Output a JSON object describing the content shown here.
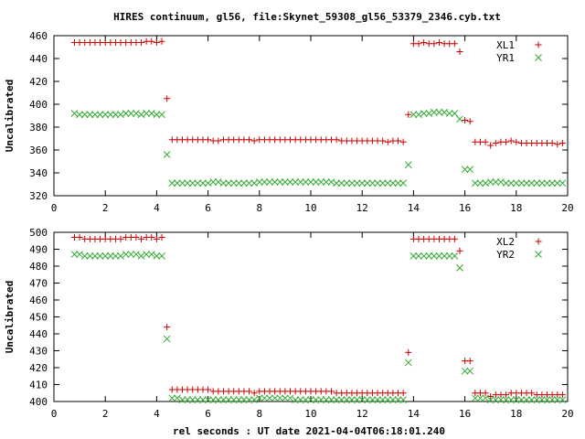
{
  "title": "HIRES continuum, gl56, file:Skynet_59308_gl56_53379_2346.cyb.txt",
  "xlabel": "rel seconds : UT date 2021-04-04T06:18:01.240",
  "colors": {
    "series_a": "#cc0000",
    "series_b": "#33aa33",
    "axis": "#000000"
  },
  "chart_data": [
    {
      "type": "scatter",
      "ylabel": "Uncalibrated",
      "xlim": [
        0,
        20
      ],
      "ylim": [
        320,
        460
      ],
      "x_ticks": [
        0,
        2,
        4,
        6,
        8,
        10,
        12,
        14,
        16,
        18,
        20
      ],
      "y_ticks": [
        320,
        340,
        360,
        380,
        400,
        420,
        440,
        460
      ],
      "legend_position": "top-right",
      "grid": false,
      "series": [
        {
          "name": "XL1",
          "marker": "plus",
          "x": [
            0.8,
            1.0,
            1.2,
            1.4,
            1.6,
            1.8,
            2.0,
            2.2,
            2.4,
            2.6,
            2.8,
            3.0,
            3.2,
            3.4,
            3.6,
            3.8,
            4.0,
            4.2,
            4.4,
            4.6,
            4.8,
            5.0,
            5.2,
            5.4,
            5.6,
            5.8,
            6.0,
            6.2,
            6.4,
            6.6,
            6.8,
            7.0,
            7.2,
            7.4,
            7.6,
            7.8,
            8.0,
            8.2,
            8.4,
            8.6,
            8.8,
            9.0,
            9.2,
            9.4,
            9.6,
            9.8,
            10.0,
            10.2,
            10.4,
            10.6,
            10.8,
            11.0,
            11.2,
            11.4,
            11.6,
            11.8,
            12.0,
            12.2,
            12.4,
            12.6,
            12.8,
            13.0,
            13.2,
            13.4,
            13.6,
            13.8,
            14.0,
            14.2,
            14.4,
            14.6,
            14.8,
            15.0,
            15.2,
            15.4,
            15.6,
            15.8,
            16.0,
            16.2,
            16.4,
            16.6,
            16.8,
            17.0,
            17.2,
            17.4,
            17.6,
            17.8,
            18.0,
            18.2,
            18.4,
            18.6,
            18.8,
            19.0,
            19.2,
            19.4,
            19.6,
            19.8
          ],
          "y": [
            454,
            454,
            454,
            454,
            454,
            454,
            454,
            454,
            454,
            454,
            454,
            454,
            454,
            454,
            455,
            455,
            454,
            455,
            405,
            369,
            369,
            369,
            369,
            369,
            369,
            369,
            369,
            368,
            368,
            369,
            369,
            369,
            369,
            369,
            369,
            368,
            369,
            369,
            369,
            369,
            369,
            369,
            369,
            369,
            369,
            369,
            369,
            369,
            369,
            369,
            369,
            369,
            368,
            368,
            368,
            368,
            368,
            368,
            368,
            368,
            368,
            367,
            368,
            368,
            367,
            391,
            453,
            453,
            454,
            453,
            453,
            454,
            453,
            453,
            453,
            446,
            386,
            385,
            367,
            367,
            367,
            364,
            366,
            367,
            367,
            368,
            367,
            366,
            366,
            366,
            366,
            366,
            366,
            366,
            365,
            366
          ],
          "sparse_note": ""
        },
        {
          "name": "YR1",
          "marker": "cross",
          "x": [
            0.8,
            1.0,
            1.2,
            1.4,
            1.6,
            1.8,
            2.0,
            2.2,
            2.4,
            2.6,
            2.8,
            3.0,
            3.2,
            3.4,
            3.6,
            3.8,
            4.0,
            4.2,
            4.4,
            4.6,
            4.8,
            5.0,
            5.2,
            5.4,
            5.6,
            5.8,
            6.0,
            6.2,
            6.4,
            6.6,
            6.8,
            7.0,
            7.2,
            7.4,
            7.6,
            7.8,
            8.0,
            8.2,
            8.4,
            8.6,
            8.8,
            9.0,
            9.2,
            9.4,
            9.6,
            9.8,
            10.0,
            10.2,
            10.4,
            10.6,
            10.8,
            11.0,
            11.2,
            11.4,
            11.6,
            11.8,
            12.0,
            12.2,
            12.4,
            12.6,
            12.8,
            13.0,
            13.2,
            13.4,
            13.6,
            13.8,
            14.0,
            14.2,
            14.4,
            14.6,
            14.8,
            15.0,
            15.2,
            15.4,
            15.6,
            15.8,
            16.0,
            16.2,
            16.4,
            16.6,
            16.8,
            17.0,
            17.2,
            17.4,
            17.6,
            17.8,
            18.0,
            18.2,
            18.4,
            18.6,
            18.8,
            19.0,
            19.2,
            19.4,
            19.6,
            19.8
          ],
          "y": [
            392,
            391,
            391,
            391,
            391,
            391,
            391,
            391,
            391,
            391,
            392,
            392,
            392,
            391,
            392,
            392,
            391,
            391,
            356,
            331,
            331,
            331,
            331,
            331,
            331,
            331,
            331,
            332,
            332,
            331,
            331,
            331,
            331,
            331,
            331,
            331,
            332,
            332,
            332,
            332,
            332,
            332,
            332,
            332,
            332,
            332,
            332,
            332,
            332,
            332,
            332,
            331,
            331,
            331,
            331,
            331,
            331,
            331,
            331,
            331,
            331,
            331,
            331,
            331,
            331,
            347,
            391,
            391,
            392,
            392,
            393,
            393,
            393,
            392,
            392,
            387,
            343,
            343,
            331,
            331,
            331,
            332,
            332,
            332,
            331,
            331,
            331,
            331,
            331,
            331,
            331,
            331,
            331,
            331,
            331,
            331
          ]
        }
      ]
    },
    {
      "type": "scatter",
      "ylabel": "Uncalibrated",
      "xlim": [
        0,
        20
      ],
      "ylim": [
        400,
        500
      ],
      "x_ticks": [
        0,
        2,
        4,
        6,
        8,
        10,
        12,
        14,
        16,
        18,
        20
      ],
      "y_ticks": [
        400,
        410,
        420,
        430,
        440,
        450,
        460,
        470,
        480,
        490,
        500
      ],
      "legend_position": "top-right",
      "grid": false,
      "series": [
        {
          "name": "XL2",
          "marker": "plus",
          "x": [
            0.8,
            1.0,
            1.2,
            1.4,
            1.6,
            1.8,
            2.0,
            2.2,
            2.4,
            2.6,
            2.8,
            3.0,
            3.2,
            3.4,
            3.6,
            3.8,
            4.0,
            4.2,
            4.4,
            4.6,
            4.8,
            5.0,
            5.2,
            5.4,
            5.6,
            5.8,
            6.0,
            6.2,
            6.4,
            6.6,
            6.8,
            7.0,
            7.2,
            7.4,
            7.6,
            7.8,
            8.0,
            8.2,
            8.4,
            8.6,
            8.8,
            9.0,
            9.2,
            9.4,
            9.6,
            9.8,
            10.0,
            10.2,
            10.4,
            10.6,
            10.8,
            11.0,
            11.2,
            11.4,
            11.6,
            11.8,
            12.0,
            12.2,
            12.4,
            12.6,
            12.8,
            13.0,
            13.2,
            13.4,
            13.6,
            13.8,
            14.0,
            14.2,
            14.4,
            14.6,
            14.8,
            15.0,
            15.2,
            15.4,
            15.6,
            15.8,
            16.0,
            16.2,
            16.4,
            16.6,
            16.8,
            17.0,
            17.2,
            17.4,
            17.6,
            17.8,
            18.0,
            18.2,
            18.4,
            18.6,
            18.8,
            19.0,
            19.2,
            19.4,
            19.6,
            19.8
          ],
          "y": [
            497,
            497,
            496,
            496,
            496,
            496,
            496,
            496,
            496,
            496,
            497,
            497,
            497,
            496,
            497,
            497,
            496,
            497,
            444,
            407,
            407,
            407,
            407,
            407,
            407,
            407,
            407,
            406,
            406,
            406,
            406,
            406,
            406,
            406,
            406,
            405,
            406,
            406,
            406,
            406,
            406,
            406,
            406,
            406,
            406,
            406,
            406,
            406,
            406,
            406,
            406,
            405,
            405,
            405,
            405,
            405,
            405,
            405,
            405,
            405,
            405,
            405,
            405,
            405,
            405,
            429,
            496,
            496,
            496,
            496,
            496,
            496,
            496,
            496,
            496,
            489,
            424,
            424,
            405,
            405,
            405,
            403,
            404,
            404,
            404,
            405,
            405,
            405,
            405,
            405,
            404,
            404,
            404,
            404,
            404,
            404
          ]
        },
        {
          "name": "YR2",
          "marker": "cross",
          "x": [
            0.8,
            1.0,
            1.2,
            1.4,
            1.6,
            1.8,
            2.0,
            2.2,
            2.4,
            2.6,
            2.8,
            3.0,
            3.2,
            3.4,
            3.6,
            3.8,
            4.0,
            4.2,
            4.4,
            4.6,
            4.8,
            5.0,
            5.2,
            5.4,
            5.6,
            5.8,
            6.0,
            6.2,
            6.4,
            6.6,
            6.8,
            7.0,
            7.2,
            7.4,
            7.6,
            7.8,
            8.0,
            8.2,
            8.4,
            8.6,
            8.8,
            9.0,
            9.2,
            9.4,
            9.6,
            9.8,
            10.0,
            10.2,
            10.4,
            10.6,
            10.8,
            11.0,
            11.2,
            11.4,
            11.6,
            11.8,
            12.0,
            12.2,
            12.4,
            12.6,
            12.8,
            13.0,
            13.2,
            13.4,
            13.6,
            13.8,
            14.0,
            14.2,
            14.4,
            14.6,
            14.8,
            15.0,
            15.2,
            15.4,
            15.6,
            15.8,
            16.0,
            16.2,
            16.4,
            16.6,
            16.8,
            17.0,
            17.2,
            17.4,
            17.6,
            17.8,
            18.0,
            18.2,
            18.4,
            18.6,
            18.8,
            19.0,
            19.2,
            19.4,
            19.6,
            19.8
          ],
          "y": [
            487,
            487,
            486,
            486,
            486,
            486,
            486,
            486,
            486,
            486,
            487,
            487,
            487,
            486,
            487,
            487,
            486,
            486,
            437,
            402,
            402,
            401,
            401,
            401,
            401,
            401,
            401,
            401,
            401,
            401,
            401,
            401,
            401,
            401,
            401,
            401,
            402,
            402,
            402,
            402,
            402,
            402,
            402,
            401,
            401,
            401,
            401,
            401,
            401,
            401,
            401,
            401,
            401,
            401,
            401,
            401,
            401,
            401,
            401,
            401,
            401,
            401,
            401,
            401,
            401,
            423,
            486,
            486,
            486,
            486,
            486,
            486,
            486,
            486,
            486,
            479,
            418,
            418,
            402,
            402,
            402,
            401,
            401,
            401,
            401,
            401,
            401,
            401,
            401,
            401,
            401,
            401,
            401,
            401,
            401,
            401
          ]
        }
      ]
    }
  ]
}
